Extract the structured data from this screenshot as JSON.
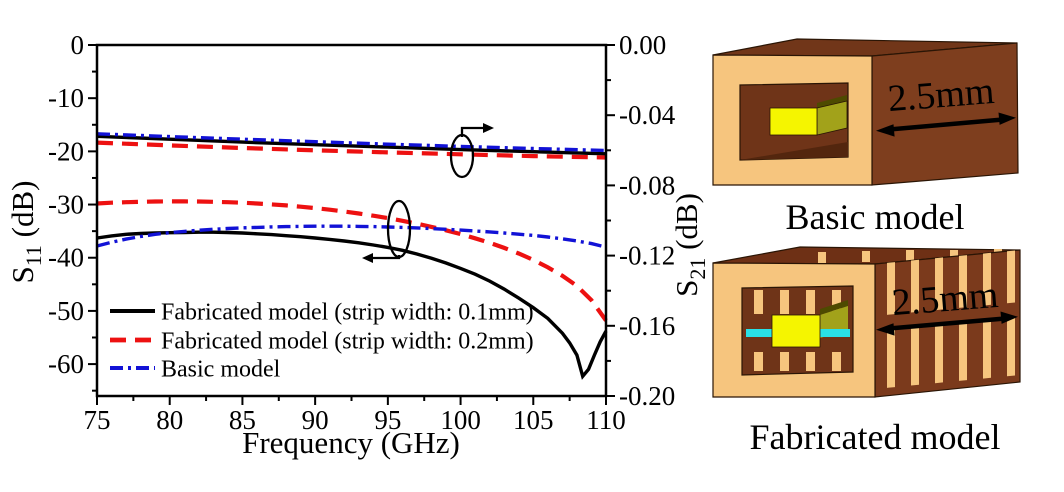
{
  "chart_data": {
    "type": "line",
    "xlabel": "Frequency (GHz)",
    "ylabel_left": {
      "prefix": "S",
      "sub": "11",
      "suffix": " (dB)"
    },
    "ylabel_right": {
      "prefix": "S",
      "sub": "21",
      "suffix": " (dB)"
    },
    "xlim": [
      75,
      110
    ],
    "ylim_left": [
      -66,
      0
    ],
    "ylim_right": [
      -0.2,
      0
    ],
    "x_ticks": [
      75,
      80,
      85,
      90,
      95,
      100,
      105,
      110
    ],
    "y_ticks_left": [
      "0",
      "-10",
      "-20",
      "-30",
      "-40",
      "-50",
      "-60"
    ],
    "y_ticks_right": [
      "0.00",
      "-0.04",
      "-0.08",
      "-0.12",
      "-0.16",
      "-0.20"
    ],
    "grid": false,
    "legend_position": "lower-left-inside",
    "legend": [
      {
        "label": "Fabricated model (strip width: 0.1mm)",
        "color": "#000000",
        "style": "solid"
      },
      {
        "label": "Fabricated model (strip width: 0.2mm)",
        "color": "#ED1111",
        "style": "dashed"
      },
      {
        "label": "Basic model",
        "color": "#1212D6",
        "style": "dashdot"
      }
    ],
    "series": [
      {
        "name": "S11-fabricated-strip-0.1mm",
        "axis": "left",
        "color": "#000000",
        "style": "solid",
        "x": [
          75,
          76,
          77,
          78,
          79,
          80,
          81,
          82,
          83,
          84,
          85,
          86,
          87,
          88,
          89,
          90,
          91,
          92,
          93,
          94,
          95,
          96,
          97,
          98,
          99,
          100,
          101,
          102,
          103,
          104,
          105,
          106,
          107,
          107.5,
          108,
          108.4,
          108.8,
          109.2,
          109.6,
          110
        ],
        "y": [
          -36.3,
          -35.9,
          -35.6,
          -35.45,
          -35.35,
          -35.3,
          -35.25,
          -35.2,
          -35.2,
          -35.25,
          -35.35,
          -35.5,
          -35.65,
          -35.85,
          -36.05,
          -36.3,
          -36.55,
          -36.85,
          -37.2,
          -37.6,
          -38.05,
          -38.6,
          -39.3,
          -40.1,
          -41.0,
          -42.0,
          -43.1,
          -44.4,
          -45.9,
          -47.6,
          -49.4,
          -51.4,
          -54.2,
          -56.0,
          -58.3,
          -62.3,
          -61.0,
          -58.3,
          -55.8,
          -53.8
        ]
      },
      {
        "name": "S11-fabricated-strip-0.2mm",
        "axis": "left",
        "color": "#ED1111",
        "style": "dashed",
        "x": [
          75,
          76,
          77,
          78,
          79,
          80,
          81,
          82,
          83,
          84,
          85,
          86,
          87,
          88,
          89,
          90,
          91,
          92,
          93,
          94,
          95,
          96,
          97,
          98,
          99,
          100,
          101,
          102,
          103,
          104,
          105,
          106,
          107,
          108,
          109,
          110
        ],
        "y": [
          -29.8,
          -29.65,
          -29.55,
          -29.48,
          -29.42,
          -29.4,
          -29.4,
          -29.42,
          -29.48,
          -29.56,
          -29.66,
          -29.8,
          -29.97,
          -30.17,
          -30.4,
          -30.67,
          -30.97,
          -31.3,
          -31.68,
          -32.1,
          -32.55,
          -33.05,
          -33.6,
          -34.2,
          -34.85,
          -35.55,
          -36.35,
          -37.2,
          -38.15,
          -39.2,
          -40.4,
          -41.8,
          -43.4,
          -45.3,
          -48.0,
          -51.8
        ]
      },
      {
        "name": "S11-basic-model",
        "axis": "left",
        "color": "#1212D6",
        "style": "dashdot",
        "x": [
          75,
          76,
          77,
          78,
          79,
          80,
          81,
          82,
          83,
          84,
          85,
          86,
          87,
          88,
          89,
          90,
          91,
          92,
          93,
          94,
          95,
          96,
          97,
          98,
          99,
          100,
          101,
          102,
          103,
          104,
          105,
          106,
          107,
          108,
          109,
          110
        ],
        "y": [
          -37.8,
          -37.1,
          -36.5,
          -36.0,
          -35.6,
          -35.3,
          -35.05,
          -34.85,
          -34.65,
          -34.5,
          -34.4,
          -34.3,
          -34.2,
          -34.15,
          -34.1,
          -34.08,
          -34.07,
          -34.08,
          -34.1,
          -34.15,
          -34.22,
          -34.3,
          -34.4,
          -34.52,
          -34.65,
          -34.8,
          -34.97,
          -35.15,
          -35.35,
          -35.57,
          -35.8,
          -36.1,
          -36.45,
          -36.85,
          -37.35,
          -38.0
        ]
      },
      {
        "name": "S21-fabricated-strip-0.1mm",
        "axis": "right",
        "color": "#000000",
        "style": "solid",
        "x": [
          75,
          80,
          85,
          90,
          95,
          100,
          105,
          110
        ],
        "y": [
          -0.052,
          -0.0537,
          -0.0553,
          -0.0568,
          -0.0582,
          -0.0596,
          -0.0608,
          -0.062
        ]
      },
      {
        "name": "S21-fabricated-strip-0.2mm",
        "axis": "right",
        "color": "#ED1111",
        "style": "dashed",
        "x": [
          75,
          80,
          85,
          90,
          95,
          100,
          105,
          110
        ],
        "y": [
          -0.0556,
          -0.0572,
          -0.0587,
          -0.06,
          -0.0612,
          -0.0623,
          -0.0633,
          -0.0641
        ]
      },
      {
        "name": "S21-basic-model",
        "axis": "right",
        "color": "#1212D6",
        "style": "dashdot",
        "x": [
          75,
          80,
          85,
          90,
          95,
          100,
          105,
          110
        ],
        "y": [
          -0.0506,
          -0.0522,
          -0.0537,
          -0.0551,
          -0.0565,
          -0.0578,
          -0.059,
          -0.0601
        ]
      }
    ],
    "annotations": [
      {
        "shape": "ellipse",
        "arrow_direction": "right"
      },
      {
        "shape": "ellipse",
        "arrow_direction": "left"
      }
    ]
  },
  "models": {
    "dimension_label": "2.5mm",
    "basic": {
      "caption": "Basic model"
    },
    "fabricated": {
      "caption": "Fabricated model"
    }
  },
  "colors": {
    "tan": "#F6C57E",
    "brown_side": "#7E3E1E",
    "brown_top": "#713619",
    "cavity": "#6F3418",
    "cavity_shadow": "#53260E",
    "strip_yellow": "#F5F500",
    "strip_olive_bright": "#A2A21A",
    "strip_olive_dark": "#4E4A00",
    "substrate_cyan": "#29E1E6"
  }
}
